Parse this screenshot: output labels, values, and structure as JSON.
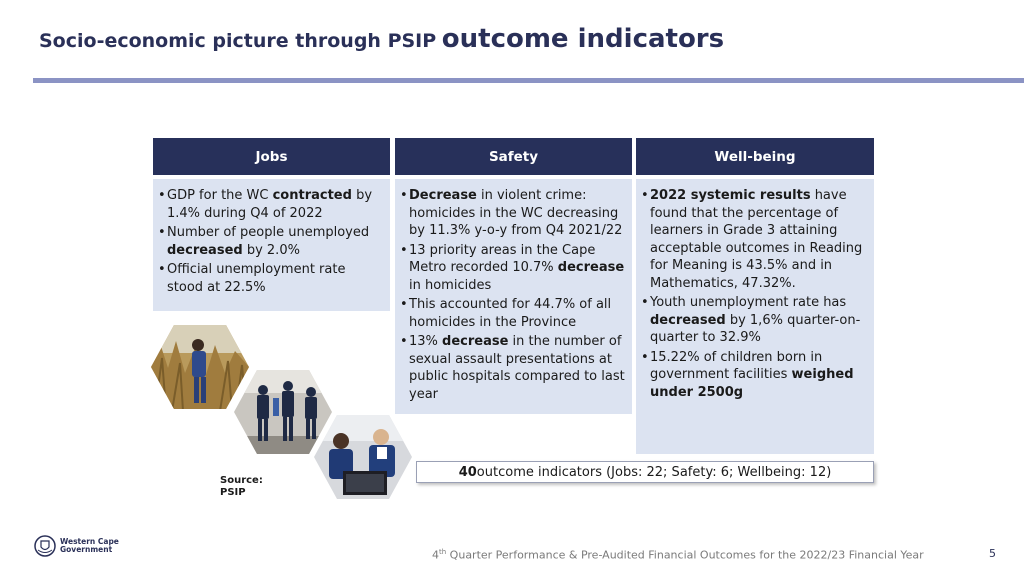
{
  "slide": {
    "title_small": "Socio-economic picture through PSIP",
    "title_big": "outcome indicators",
    "page_number": "5"
  },
  "columns": [
    {
      "heading": "Jobs",
      "bullets": [
        [
          {
            "t": "GDP for the WC ",
            "b": false
          },
          {
            "t": "contracted",
            "b": true
          },
          {
            "t": " by 1.4% during Q4 of 2022",
            "b": false
          }
        ],
        [
          {
            "t": "Number of people unemployed ",
            "b": false
          },
          {
            "t": "decreased",
            "b": true
          },
          {
            "t": " by 2.0%",
            "b": false
          }
        ],
        [
          {
            "t": "Official unemployment rate stood at 22.5%",
            "b": false
          }
        ]
      ]
    },
    {
      "heading": "Safety",
      "bullets": [
        [
          {
            "t": "Decrease",
            "b": true
          },
          {
            "t": " in violent crime: homicides in the WC decreasing by 11.3% y-o-y from Q4 2021/22",
            "b": false
          }
        ],
        [
          {
            "t": "13 priority areas in the Cape Metro recorded 10.7% ",
            "b": false
          },
          {
            "t": "decrease",
            "b": true
          },
          {
            "t": " in homicides",
            "b": false
          }
        ],
        [
          {
            "t": "This accounted for 44.7% of all homicides in the Province",
            "b": false
          }
        ],
        [
          {
            "t": "13% ",
            "b": false
          },
          {
            "t": "decrease",
            "b": true
          },
          {
            "t": " in the number of sexual assault presentations at public hospitals compared to last year",
            "b": false
          }
        ]
      ]
    },
    {
      "heading": "Well-being",
      "bullets": [
        [
          {
            "t": "2022 systemic results",
            "b": true
          },
          {
            "t": " have found that the percentage of learners in Grade 3 attaining acceptable outcomes in Reading for Meaning is 43.5% and in Mathematics, 47.32%.",
            "b": false
          }
        ],
        [
          {
            "t": "Youth unemployment rate has ",
            "b": false
          },
          {
            "t": "decreased",
            "b": true
          },
          {
            "t": " by 1,6% quarter-on-quarter to 32.9%",
            "b": false
          }
        ],
        [
          {
            "t": "15.22% of children born in government facilities ",
            "b": false
          },
          {
            "t": "weighed under 2500g",
            "b": true
          }
        ]
      ]
    }
  ],
  "summary": {
    "count": "40",
    "text": " outcome indicators (Jobs: 22; Safety: 6; Wellbeing: 12)"
  },
  "source": {
    "label": "Source:",
    "value": "PSIP"
  },
  "logo": {
    "line1": "Western Cape",
    "line2": "Government",
    "icon": "coat-of-arms-icon"
  },
  "footer": {
    "prefix": "4",
    "superscript": "th",
    "text": " Quarter Performance & Pre-Audited Financial Outcomes for the 2022/23 Financial Year"
  },
  "colors": {
    "navy": "#27305a",
    "rule": "#8b93c4",
    "panel": "#dce3f1"
  }
}
